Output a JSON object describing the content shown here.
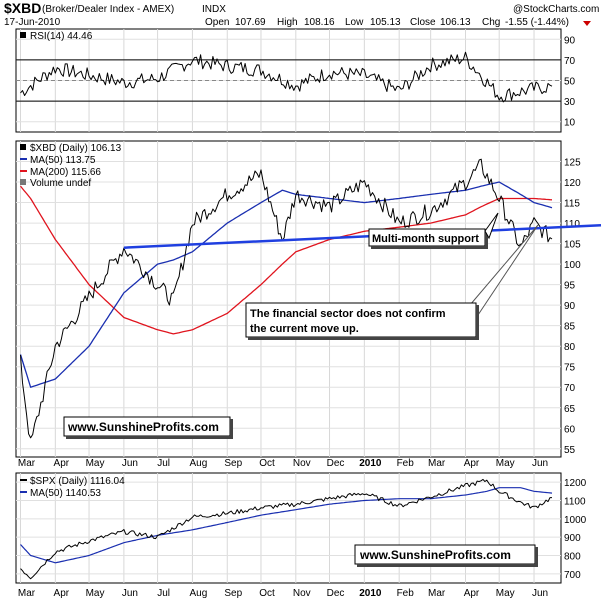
{
  "header": {
    "symbol": "$XBD",
    "name": "(Broker/Dealer Index - AMEX)",
    "exchange": "INDX",
    "date": "17-Jun-2010",
    "open_label": "Open",
    "open": "107.69",
    "high_label": "High",
    "high": "108.16",
    "low_label": "Low",
    "low": "105.13",
    "close_label": "Close",
    "close": "106.13",
    "chg_label": "Chg",
    "chg": "-1.55 (-1.44%)",
    "watermark": "@StockCharts.com"
  },
  "rsi_panel": {
    "legend": "RSI(14) 44.46",
    "ticks": [
      "90",
      "70",
      "50",
      "30",
      "10"
    ]
  },
  "price_panel": {
    "legend_main": "$XBD (Daily) 106.13",
    "legend_ma50": "MA(50) 113.75",
    "legend_ma200": "MA(200) 115.66",
    "legend_volume": "Volume undef",
    "ticks": [
      "125",
      "120",
      "115",
      "110",
      "105",
      "100",
      "95",
      "90",
      "85",
      "80",
      "75",
      "70",
      "65",
      "60",
      "55"
    ],
    "annotation_support": "Multi-month support",
    "annotation_note_line1": "The financial sector does not confirm",
    "annotation_note_line2": "the current move up.",
    "website": "www.SunshineProfits.com"
  },
  "spx_panel": {
    "legend_main": "$SPX (Daily) 1116.04",
    "legend_ma50": "MA(50) 1140.53",
    "ticks": [
      "1200",
      "1100",
      "1000",
      "900",
      "800",
      "700"
    ],
    "website": "www.SunshineProfits.com"
  },
  "x_axis": {
    "labels": [
      "Mar",
      "Apr",
      "May",
      "Jun",
      "Jul",
      "Aug",
      "Sep",
      "Oct",
      "Nov",
      "Dec",
      "2010",
      "Feb",
      "Mar",
      "Apr",
      "May",
      "Jun"
    ]
  },
  "colors": {
    "price_candles": "#000000",
    "ma50": "#1a2fb0",
    "ma200": "#e0141e",
    "support_line": "#1f3fe0",
    "link_blue": "#0a0ad0",
    "link_red": "#e01010",
    "chg_red": "#cc0000"
  },
  "chart_data": [
    {
      "type": "line",
      "panel": "RSI",
      "title": "RSI(14) 44.46",
      "ylim": [
        10,
        90
      ],
      "reference_lines": [
        70,
        50,
        30
      ],
      "x": [
        "2009-03-01",
        "2009-04-01",
        "2009-05-01",
        "2009-06-01",
        "2009-07-01",
        "2009-08-01",
        "2009-09-01",
        "2009-10-01",
        "2009-11-01",
        "2009-12-01",
        "2010-01-01",
        "2010-02-01",
        "2010-03-01",
        "2010-04-01",
        "2010-05-01",
        "2010-06-01",
        "2010-06-17"
      ],
      "series": [
        {
          "name": "RSI(14)",
          "values": [
            38,
            62,
            55,
            48,
            52,
            70,
            64,
            60,
            45,
            58,
            55,
            40,
            65,
            72,
            35,
            42,
            44.46
          ]
        }
      ]
    },
    {
      "type": "line",
      "panel": "price",
      "title": "$XBD (Daily) 106.13",
      "ylim": [
        55,
        125
      ],
      "x": [
        "2009-03-01",
        "2009-03-10",
        "2009-04-01",
        "2009-05-01",
        "2009-06-01",
        "2009-07-01",
        "2009-07-15",
        "2009-08-01",
        "2009-09-01",
        "2009-10-01",
        "2009-10-20",
        "2009-11-01",
        "2009-12-01",
        "2010-01-01",
        "2010-02-01",
        "2010-03-01",
        "2010-04-01",
        "2010-04-15",
        "2010-05-01",
        "2010-05-20",
        "2010-06-01",
        "2010-06-17"
      ],
      "series": [
        {
          "name": "$XBD",
          "values": [
            76,
            56,
            80,
            92,
            104,
            95,
            91,
            110,
            117,
            122,
            106,
            117,
            114,
            120,
            110,
            113,
            120,
            124,
            116,
            104,
            110,
            106.13
          ]
        },
        {
          "name": "MA(50)",
          "values": [
            78,
            70,
            72,
            80,
            93,
            100,
            101,
            103,
            110,
            115,
            118,
            117,
            116,
            115,
            116,
            117,
            118,
            119,
            120,
            117,
            115,
            113.75
          ]
        },
        {
          "name": "MA(200)",
          "values": [
            119,
            116,
            106,
            95,
            87,
            84,
            83,
            84,
            88,
            95,
            100,
            103,
            106,
            108,
            109,
            110,
            112,
            114,
            116,
            116,
            116,
            115.66
          ]
        }
      ],
      "support_line": {
        "from": [
          "2009-06-01",
          104
        ],
        "to": [
          "2010-06-25",
          109
        ]
      }
    },
    {
      "type": "line",
      "panel": "SPX",
      "title": "$SPX (Daily) 1116.04",
      "ylim": [
        650,
        1250
      ],
      "x": [
        "2009-03-01",
        "2009-03-10",
        "2009-04-01",
        "2009-05-01",
        "2009-06-01",
        "2009-07-01",
        "2009-08-01",
        "2009-09-01",
        "2009-10-01",
        "2009-11-01",
        "2009-12-01",
        "2010-01-01",
        "2010-02-01",
        "2010-03-01",
        "2010-04-01",
        "2010-04-20",
        "2010-05-01",
        "2010-05-20",
        "2010-06-01",
        "2010-06-17"
      ],
      "series": [
        {
          "name": "$SPX",
          "values": [
            730,
            680,
            820,
            880,
            930,
            900,
            1010,
            1030,
            1060,
            1080,
            1110,
            1140,
            1070,
            1120,
            1180,
            1210,
            1150,
            1090,
            1060,
            1116.04
          ]
        },
        {
          "name": "MA(50)",
          "values": [
            860,
            800,
            760,
            800,
            870,
            910,
            940,
            980,
            1020,
            1050,
            1080,
            1100,
            1110,
            1110,
            1130,
            1150,
            1170,
            1170,
            1150,
            1140.53
          ]
        }
      ]
    }
  ]
}
